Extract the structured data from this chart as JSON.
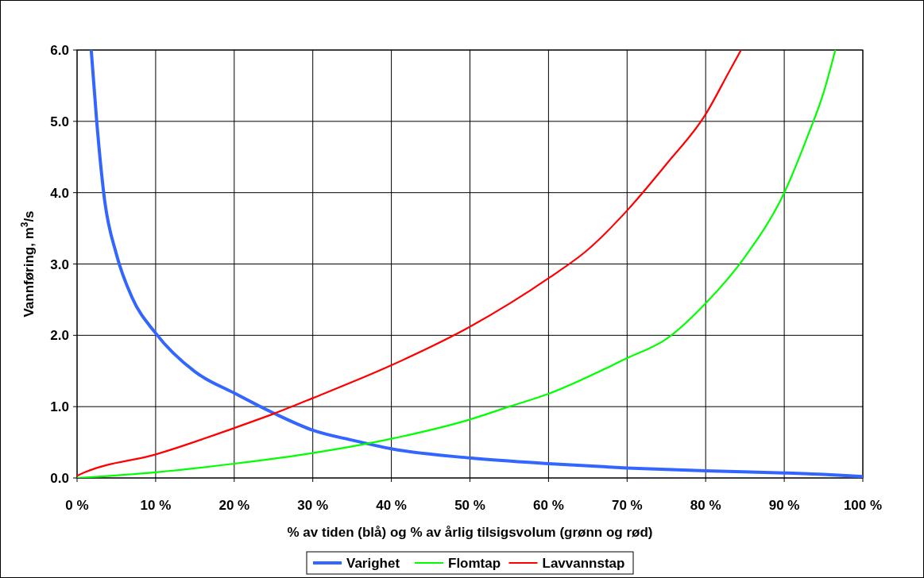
{
  "chart_data": {
    "type": "line",
    "xlabel": "% av tiden (blå) og % av årlig tilsigsvolum (grønn og rød)",
    "ylabel": "Vannføring, m$^{3}$/s",
    "xlim": [
      0,
      100
    ],
    "xticks": [
      {
        "value": 0,
        "label": "0 %"
      },
      {
        "value": 10,
        "label": "10 %"
      },
      {
        "value": 20,
        "label": "20 %"
      },
      {
        "value": 30,
        "label": "30 %"
      },
      {
        "value": 40,
        "label": "40 %"
      },
      {
        "value": 50,
        "label": "50 %"
      },
      {
        "value": 60,
        "label": "60 %"
      },
      {
        "value": 70,
        "label": "70 %"
      },
      {
        "value": 80,
        "label": "80 %"
      },
      {
        "value": 90,
        "label": "90 %"
      },
      {
        "value": 100,
        "label": "100 %"
      }
    ],
    "ylim": [
      0,
      6
    ],
    "yticks": [
      {
        "value": 0,
        "label": "0.0"
      },
      {
        "value": 1,
        "label": "1.0"
      },
      {
        "value": 2,
        "label": "2.0"
      },
      {
        "value": 3,
        "label": "3.0"
      },
      {
        "value": 4,
        "label": "4.0"
      },
      {
        "value": 5,
        "label": "5.0"
      },
      {
        "value": 6,
        "label": "6.0"
      }
    ],
    "grid": true,
    "legend": "bottom",
    "line_style": "solid",
    "series": [
      {
        "name": "Varighet",
        "color": "#3366ff",
        "x": [
          1.8,
          2.5,
          3.5,
          5,
          7,
          10,
          15,
          20,
          25,
          30,
          35,
          40,
          50,
          60,
          70,
          80,
          90,
          95,
          100
        ],
        "values": [
          6.0,
          5.0,
          3.9,
          3.14,
          2.53,
          2.03,
          1.49,
          1.19,
          0.91,
          0.67,
          0.53,
          0.41,
          0.28,
          0.2,
          0.14,
          0.1,
          0.07,
          0.05,
          0.02
        ]
      },
      {
        "name": "Flomtap",
        "color": "#00ff00",
        "x": [
          0,
          10,
          20,
          30,
          40,
          50,
          55,
          60,
          70,
          75,
          80,
          85,
          90,
          93,
          95,
          96.5
        ],
        "values": [
          0,
          0.08,
          0.2,
          0.35,
          0.55,
          0.82,
          1.0,
          1.18,
          1.68,
          1.95,
          2.45,
          3.1,
          4.0,
          4.8,
          5.4,
          6.0
        ]
      },
      {
        "name": "Lavvannstap",
        "color": "#ff0000",
        "x": [
          0,
          1,
          10,
          20,
          25,
          30,
          40,
          50,
          60,
          65,
          70,
          75,
          80,
          83,
          84.5
        ],
        "values": [
          0.03,
          0.08,
          0.33,
          0.7,
          0.9,
          1.12,
          1.58,
          2.12,
          2.8,
          3.2,
          3.75,
          4.4,
          5.1,
          5.7,
          6.0
        ]
      }
    ]
  }
}
